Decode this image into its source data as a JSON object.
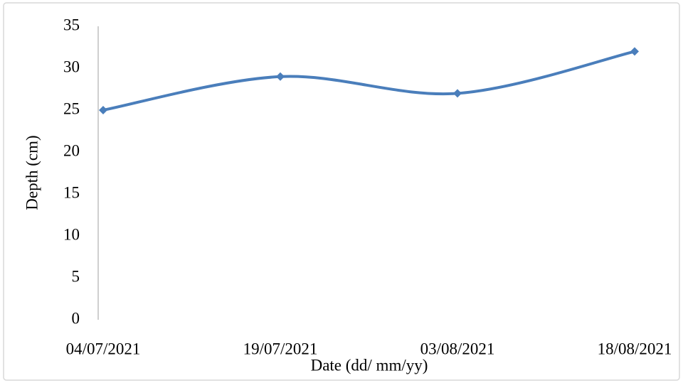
{
  "chart_data": {
    "type": "line",
    "x_label": "Date (dd/ mm/yy)",
    "y_label": "Depth (cm)",
    "categories": [
      "04/07/2021",
      "19/07/2021",
      "03/08/2021",
      "18/08/2021"
    ],
    "values": [
      25,
      29,
      27,
      32
    ],
    "color": "#4a7ebb",
    "smooth": true,
    "markers": "diamond",
    "ylim": [
      0,
      35
    ],
    "yticks": [
      0,
      5,
      10,
      15,
      20,
      25,
      30,
      35
    ],
    "grid": false
  }
}
